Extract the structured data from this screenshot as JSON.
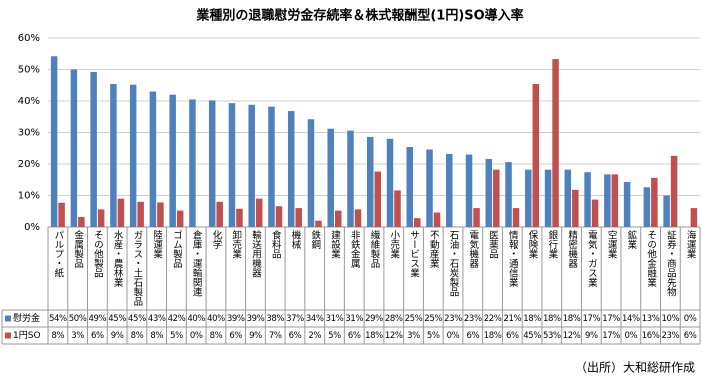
{
  "chart_data": {
    "type": "bar",
    "title": "業種別の退職慰労金存続率＆株式報酬型(1円)SO導入率",
    "source": "（出所）大和総研作成",
    "categories": [
      "パルプ・紙",
      "金属製品",
      "その他製品",
      "水産・農林業",
      "ガラス・土石製品",
      "陸運業",
      "ゴム製品",
      "倉庫・運輸関連",
      "化学",
      "卸売業",
      "輸送用機器",
      "食料品",
      "機械",
      "鉄鋼",
      "建設業",
      "非鉄金属",
      "繊維製品",
      "小売業",
      "サービス業",
      "不動産業",
      "石油・石炭製品",
      "電気機器",
      "医薬品",
      "情報・通信業",
      "保険業",
      "銀行業",
      "精密機器",
      "電気・ガス業",
      "空運業",
      "鉱業",
      "その他金融業",
      "証券・商品先物",
      "海運業"
    ],
    "series": [
      {
        "name": "慰労金",
        "color": "#4f81bd",
        "values": [
          54.2,
          50.0,
          49.2,
          45.4,
          45.2,
          43.0,
          42.0,
          40.5,
          40.2,
          39.3,
          38.8,
          38.2,
          36.8,
          34.2,
          31.2,
          30.6,
          28.6,
          28.0,
          25.4,
          24.6,
          23.2,
          23.0,
          21.6,
          20.6,
          18.2,
          18.2,
          18.2,
          17.4,
          16.7,
          14.3,
          12.6,
          10.0,
          0
        ],
        "value_labels": [
          "54%",
          "50%",
          "49%",
          "45%",
          "45%",
          "43%",
          "42%",
          "40%",
          "40%",
          "39%",
          "39%",
          "38%",
          "37%",
          "34%",
          "31%",
          "31%",
          "29%",
          "28%",
          "25%",
          "25%",
          "23%",
          "23%",
          "22%",
          "21%",
          "18%",
          "18%",
          "18%",
          "17%",
          "17%",
          "14%",
          "13%",
          "10%",
          "0%"
        ]
      },
      {
        "name": "1円SO",
        "color": "#c0504d",
        "values": [
          7.7,
          3.2,
          5.6,
          9.0,
          8.0,
          7.8,
          5.2,
          0,
          8.0,
          5.8,
          9.0,
          6.6,
          6.0,
          2.0,
          5.2,
          5.6,
          17.6,
          11.6,
          2.8,
          4.6,
          0,
          6.0,
          18.2,
          6.0,
          45.4,
          53.3,
          11.8,
          8.7,
          16.7,
          0,
          15.6,
          22.6,
          6.0
        ],
        "value_labels": [
          "8%",
          "3%",
          "6%",
          "9%",
          "8%",
          "8%",
          "5%",
          "0%",
          "8%",
          "6%",
          "9%",
          "7%",
          "6%",
          "2%",
          "5%",
          "6%",
          "18%",
          "12%",
          "3%",
          "5%",
          "0%",
          "6%",
          "18%",
          "6%",
          "45%",
          "53%",
          "12%",
          "9%",
          "17%",
          "0%",
          "16%",
          "23%",
          "6%"
        ]
      }
    ],
    "ylim": [
      0,
      60
    ],
    "yticks": [
      {
        "value": 0,
        "label": "0%"
      },
      {
        "value": 10,
        "label": "10%"
      },
      {
        "value": 20,
        "label": "20%"
      },
      {
        "value": 30,
        "label": "30%"
      },
      {
        "value": 40,
        "label": "40%"
      },
      {
        "value": 50,
        "label": "50%"
      },
      {
        "value": 60,
        "label": "60%"
      }
    ],
    "grid": true
  }
}
